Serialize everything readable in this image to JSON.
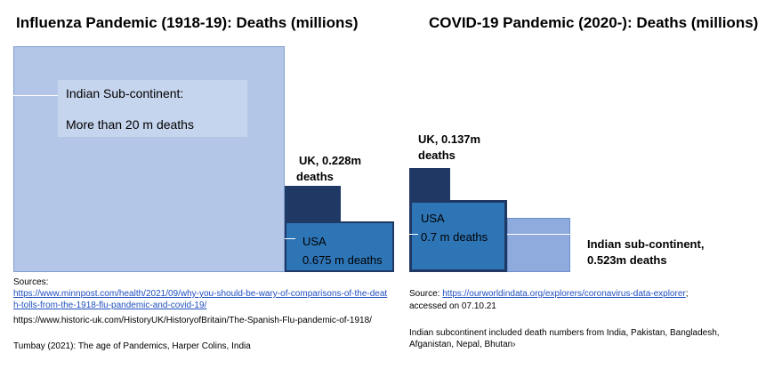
{
  "chart_data": [
    {
      "type": "area",
      "title": "Influenza Pandemic (1918-19): Deaths (millions)",
      "series": [
        {
          "name": "Indian Sub-continent",
          "value": 20,
          "label_line1": "Indian Sub-continent:",
          "label_line2": "More than 20 m deaths",
          "color": "#b4c6e7"
        },
        {
          "name": "USA",
          "value": 0.675,
          "label_line1": "USA",
          "label_line2": "0.675 m deaths",
          "color": "#2e75b6"
        },
        {
          "name": "UK",
          "value": 0.228,
          "label_line1": "UK, 0.228m",
          "label_line2": "deaths",
          "color": "#1f3864"
        }
      ],
      "sources_heading": "Sources:",
      "sources": [
        {
          "text": "https://www.minnpost.com/health/2021/09/why-you-should-be-wary-of-comparisons-of-the-death-tolls-from-the-1918-flu-pandemic-and-covid-19/",
          "link": true
        },
        {
          "text": "https://www.historic-uk.com/HistoryUK/HistoryofBritain/The-Spanish-Flu-pandemic-of-1918/",
          "link": false
        },
        {
          "text": "Tumbay (2021): The age of Pandemics, Harper Colins, India",
          "link": false
        }
      ]
    },
    {
      "type": "area",
      "title": "COVID-19 Pandemic (2020-): Deaths (millions)",
      "series": [
        {
          "name": "UK",
          "value": 0.137,
          "label_line1": "UK, 0.137m",
          "label_line2": "deaths",
          "color": "#1f3864"
        },
        {
          "name": "USA",
          "value": 0.7,
          "label_line1": "USA",
          "label_line2": "0.7 m deaths",
          "color": "#2e75b6"
        },
        {
          "name": "Indian sub-continent",
          "value": 0.523,
          "label_line1": "Indian sub-continent,",
          "label_line2": "0.523m deaths",
          "color": "#8faadc"
        }
      ],
      "source_prefix": "Source: ",
      "source_link": "https://ourworldindata.org/explorers/coronavirus-data-explorer",
      "source_suffix": ";",
      "accessed": "accessed on 07.10.21",
      "note": "Indian subcontinent included death numbers from India, Pakistan, Bangladesh, Afganistan, Nepal, Bhutan›"
    }
  ]
}
